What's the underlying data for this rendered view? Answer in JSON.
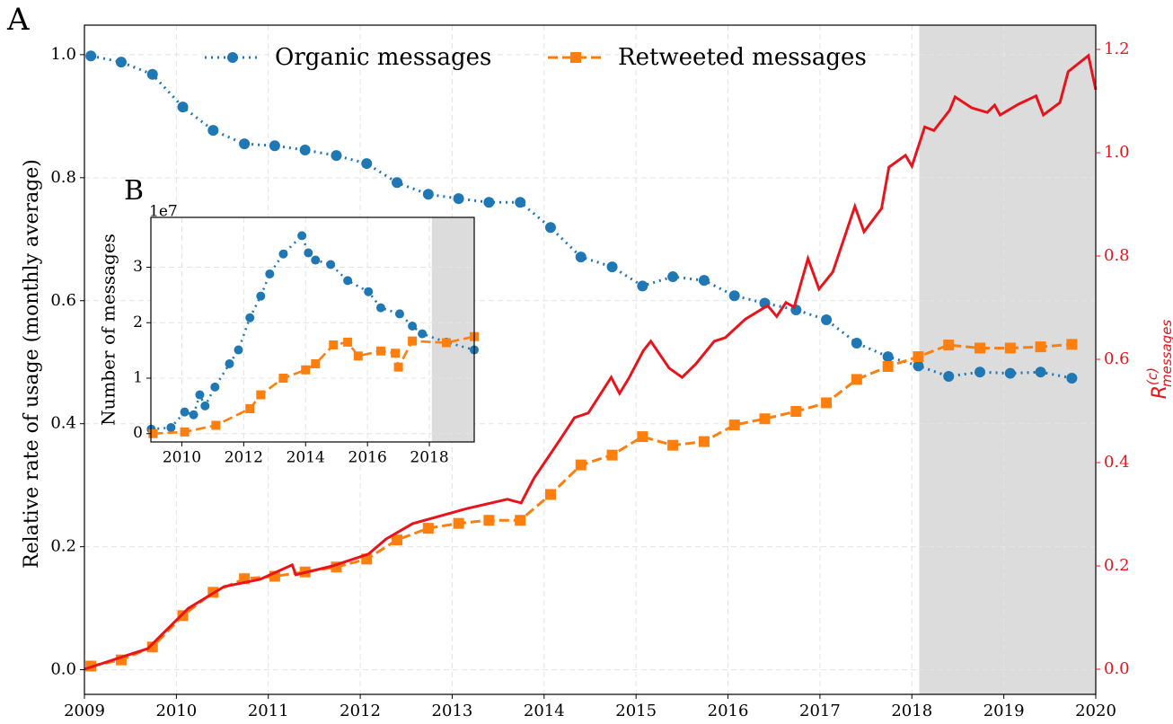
{
  "chart_data": [
    {
      "type": "line",
      "label": "A",
      "ylabel": "Relative rate of usage (monthly average)",
      "y2label": {
        "base": "R",
        "sup": "(c)",
        "sub": "messages"
      },
      "xlim": [
        2009,
        2020
      ],
      "xticks": [
        2009,
        2010,
        2011,
        2012,
        2013,
        2014,
        2015,
        2016,
        2017,
        2018,
        2019,
        2020
      ],
      "ylim": [
        -0.04,
        1.048
      ],
      "yticks": [
        {
          "value": 0,
          "label": "0.0"
        },
        0.2,
        0.4,
        0.6,
        0.8,
        {
          "value": 1,
          "label": "1.0"
        }
      ],
      "y2lim": [
        -0.0487,
        1.247
      ],
      "y2ticks": [
        {
          "value": 0,
          "label": "0.0"
        },
        0.2,
        0.4,
        0.6,
        0.8,
        {
          "value": 1,
          "label": "1.0"
        },
        1.2
      ],
      "grid": true,
      "legend": "top",
      "shade": [
        2018.08,
        2020
      ],
      "y2color": "#e8131b",
      "x": [
        2009.07,
        2009.4,
        2009.74,
        2010.07,
        2010.4,
        2010.74,
        2011.07,
        2011.4,
        2011.74,
        2012.07,
        2012.4,
        2012.74,
        2013.07,
        2013.4,
        2013.74,
        2014.07,
        2014.4,
        2014.74,
        2015.07,
        2015.4,
        2015.74,
        2016.07,
        2016.4,
        2016.74,
        2017.07,
        2017.4,
        2017.74,
        2018.07,
        2018.4,
        2018.74,
        2019.07,
        2019.4,
        2019.74
      ],
      "series": [
        {
          "name": "Organic messages",
          "color": "#1f77b4",
          "style": "dotted",
          "marker": "circle",
          "values": [
            0.998,
            0.988,
            0.968,
            0.915,
            0.877,
            0.855,
            0.852,
            0.845,
            0.836,
            0.823,
            0.792,
            0.773,
            0.766,
            0.76,
            0.76,
            0.719,
            0.671,
            0.655,
            0.624,
            0.639,
            0.633,
            0.608,
            0.596,
            0.585,
            0.569,
            0.531,
            0.509,
            0.494,
            0.477,
            0.484,
            0.482,
            0.484,
            0.474
          ]
        },
        {
          "name": "Retweeted messages",
          "color": "#ff7f0e",
          "style": "dashed",
          "marker": "square",
          "values": [
            0.006,
            0.016,
            0.037,
            0.088,
            0.126,
            0.148,
            0.152,
            0.159,
            0.167,
            0.18,
            0.211,
            0.23,
            0.238,
            0.243,
            0.243,
            0.285,
            0.333,
            0.349,
            0.379,
            0.365,
            0.371,
            0.398,
            0.408,
            0.42,
            0.434,
            0.472,
            0.493,
            0.509,
            0.528,
            0.523,
            0.523,
            0.525,
            0.529
          ]
        },
        {
          "color": "#e8131b",
          "style": "solid",
          "axis": "y2",
          "x": [
            2009.0,
            2009.69,
            2010.13,
            2010.52,
            2010.91,
            2011.26,
            2011.3,
            2011.7,
            2012.09,
            2012.28,
            2012.57,
            2013.16,
            2013.6,
            2013.75,
            2013.89,
            2014.19,
            2014.33,
            2014.48,
            2014.73,
            2014.82,
            2014.92,
            2015.08,
            2015.16,
            2015.36,
            2015.5,
            2015.65,
            2015.85,
            2015.97,
            2016.19,
            2016.43,
            2016.53,
            2016.63,
            2016.72,
            2016.87,
            2016.99,
            2017.14,
            2017.38,
            2017.48,
            2017.67,
            2017.75,
            2017.93,
            2018.0,
            2018.14,
            2018.24,
            2018.41,
            2018.47,
            2018.65,
            2018.82,
            2018.9,
            2018.96,
            2019.16,
            2019.35,
            2019.43,
            2019.61,
            2019.7,
            2019.92,
            2020.0
          ],
          "values": [
            0.0,
            0.04,
            0.118,
            0.16,
            0.174,
            0.202,
            0.183,
            0.2,
            0.223,
            0.252,
            0.282,
            0.311,
            0.329,
            0.322,
            0.37,
            0.449,
            0.487,
            0.496,
            0.565,
            0.534,
            0.563,
            0.617,
            0.635,
            0.583,
            0.565,
            0.591,
            0.635,
            0.642,
            0.678,
            0.704,
            0.683,
            0.71,
            0.701,
            0.795,
            0.736,
            0.769,
            0.896,
            0.847,
            0.892,
            0.972,
            0.995,
            0.974,
            1.05,
            1.043,
            1.082,
            1.108,
            1.087,
            1.078,
            1.092,
            1.073,
            1.094,
            1.11,
            1.073,
            1.097,
            1.157,
            1.188,
            1.122
          ]
        }
      ]
    },
    {
      "type": "line",
      "label": "B",
      "ylabel": "Number of messages",
      "offset": "1e7",
      "xlim": [
        2009,
        2019.45
      ],
      "xticks": [
        2010,
        2012,
        2014,
        2016,
        2018
      ],
      "ylim": [
        -0.15,
        3.9
      ],
      "yticks": [
        0,
        1,
        2,
        3
      ],
      "grid": true,
      "shade": [
        2018.08,
        2019.45
      ],
      "series": [
        {
          "color": "#1f77b4",
          "style": "dotted",
          "marker": "circle",
          "x": [
            2009.01,
            2009.65,
            2010.09,
            2010.38,
            2010.58,
            2010.75,
            2011.07,
            2011.54,
            2011.83,
            2012.2,
            2012.55,
            2012.84,
            2013.28,
            2013.88,
            2014.09,
            2014.32,
            2014.81,
            2015.36,
            2016.03,
            2016.43,
            2017.04,
            2017.45,
            2017.77,
            2018.55,
            2019.45
          ],
          "values": [
            0.08,
            0.11,
            0.39,
            0.34,
            0.7,
            0.5,
            0.84,
            1.26,
            1.51,
            2.09,
            2.48,
            2.88,
            3.24,
            3.57,
            3.26,
            3.13,
            3.05,
            2.76,
            2.56,
            2.27,
            2.16,
            1.94,
            1.8,
            1.65,
            1.51
          ]
        },
        {
          "color": "#ff7f0e",
          "style": "dashed",
          "marker": "square",
          "x": [
            2009.07,
            2010.09,
            2011.1,
            2012.2,
            2012.55,
            2013.28,
            2014.0,
            2014.32,
            2014.9,
            2015.36,
            2015.7,
            2016.43,
            2016.9,
            2017.0,
            2017.45,
            2018.55,
            2019.45
          ],
          "values": [
            0.0,
            0.03,
            0.15,
            0.45,
            0.7,
            1.0,
            1.15,
            1.26,
            1.6,
            1.65,
            1.4,
            1.49,
            1.45,
            1.2,
            1.67,
            1.64,
            1.75
          ]
        }
      ]
    }
  ]
}
